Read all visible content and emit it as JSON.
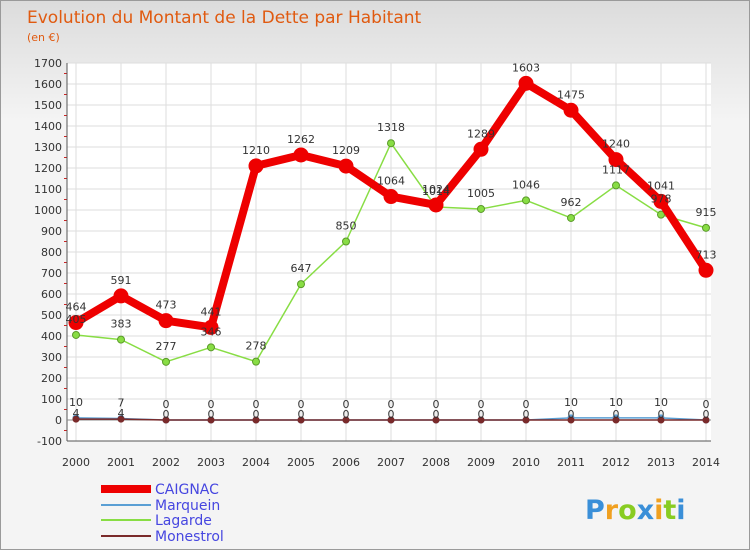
{
  "chart_data": {
    "type": "line",
    "title": "Evolution du Montant de la Dette par Habitant",
    "subtitle": "(en €)",
    "x": [
      "2000",
      "2001",
      "2002",
      "2003",
      "2004",
      "2005",
      "2006",
      "2007",
      "2008",
      "2009",
      "2010",
      "2011",
      "2012",
      "2013",
      "2014"
    ],
    "ylim": [
      -100,
      1700
    ],
    "yticks": [
      -100,
      0,
      100,
      200,
      300,
      400,
      500,
      600,
      700,
      800,
      900,
      1000,
      1100,
      1200,
      1300,
      1400,
      1500,
      1600,
      1700
    ],
    "grid": true,
    "legend_position": "bottom-left",
    "series": [
      {
        "name": "CAIGNAC",
        "color": "#ee0000",
        "values": [
          464,
          591,
          473,
          441,
          1210,
          1262,
          1209,
          1064,
          1024,
          1289,
          1603,
          1475,
          1240,
          1041,
          713
        ]
      },
      {
        "name": "Marquein",
        "color": "#5a9fd4",
        "values": [
          10,
          7,
          0,
          0,
          0,
          0,
          0,
          0,
          0,
          0,
          0,
          10,
          10,
          10,
          0
        ]
      },
      {
        "name": "Lagarde",
        "color": "#88dd44",
        "values": [
          405,
          383,
          277,
          346,
          278,
          647,
          850,
          1318,
          1014,
          1005,
          1046,
          962,
          1117,
          978,
          915
        ]
      },
      {
        "name": "Monestrol",
        "color": "#7a2a2a",
        "values": [
          4,
          4,
          0,
          0,
          0,
          0,
          0,
          0,
          0,
          0,
          0,
          0,
          0,
          0,
          0
        ]
      }
    ],
    "data_labels": {
      "CAIGNAC": [
        "464",
        "591",
        "473",
        "441",
        "1210",
        "1262",
        "1209",
        "1064",
        "1024",
        "1289",
        "1603",
        "1475",
        "1240",
        "1041",
        "713"
      ],
      "Marquein": [
        "10",
        "7",
        "0",
        "0",
        "0",
        "0",
        "0",
        "0",
        "0",
        "0",
        "0",
        "10",
        "10",
        "10",
        "0"
      ],
      "Lagarde": [
        "405",
        "383",
        "277",
        "346",
        "278",
        "647",
        "850",
        "1318",
        "1014",
        "1005",
        "1046",
        "962",
        "1117",
        "978",
        "915"
      ],
      "Monestrol": [
        "4",
        "4",
        "0",
        "0",
        "0",
        "0",
        "0",
        "0",
        "0",
        "0",
        "0",
        "0",
        "0",
        "0",
        "0"
      ]
    }
  },
  "brand": {
    "text": "Proxiti",
    "letters": [
      "P",
      "r",
      "o",
      "x",
      "i",
      "t",
      "i"
    ],
    "colors": [
      "#3a8fd8",
      "#f0a020",
      "#88cc22",
      "#3a8fd8",
      "#f0a020",
      "#88cc22",
      "#3a8fd8"
    ]
  }
}
